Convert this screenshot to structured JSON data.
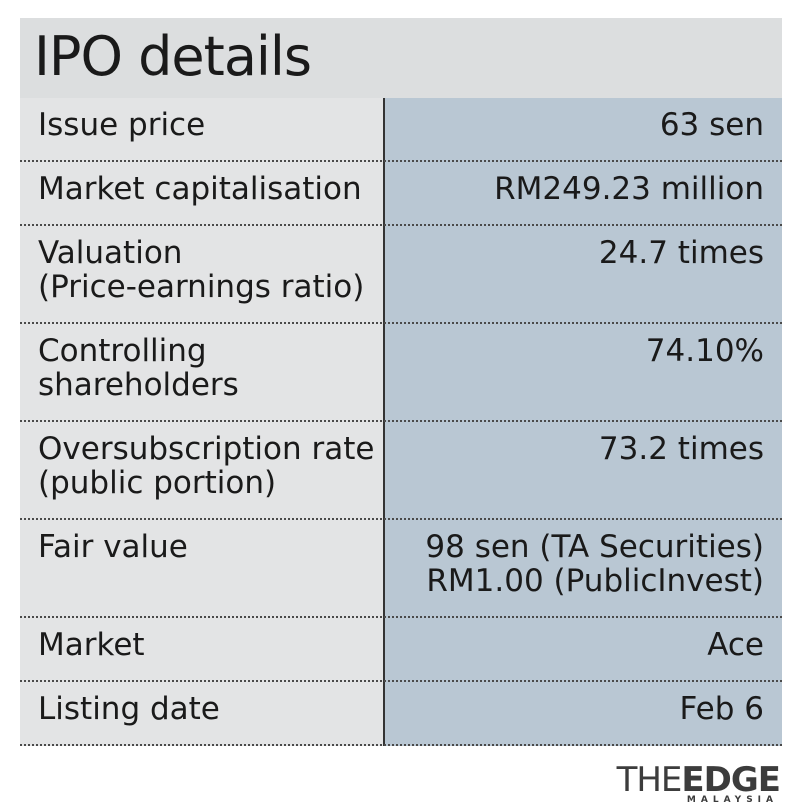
{
  "title": "IPO details",
  "rows": [
    {
      "label": [
        "Issue price"
      ],
      "value": [
        "63 sen"
      ]
    },
    {
      "label": [
        "Market capitalisation"
      ],
      "value": [
        "RM249.23 million"
      ]
    },
    {
      "label": [
        "Valuation",
        "(Price-earnings ratio)"
      ],
      "value": [
        "24.7 times"
      ]
    },
    {
      "label": [
        "Controlling",
        "shareholders"
      ],
      "value": [
        "74.10%"
      ]
    },
    {
      "label": [
        "Oversubscription rate",
        "(public portion)"
      ],
      "value": [
        "73.2 times"
      ]
    },
    {
      "label": [
        "Fair value"
      ],
      "value": [
        "98 sen (TA Securities)",
        "RM1.00 (PublicInvest)"
      ]
    },
    {
      "label": [
        "Market"
      ],
      "value": [
        "Ace"
      ]
    },
    {
      "label": [
        "Listing date"
      ],
      "value": [
        "Feb 6"
      ]
    }
  ],
  "logo": {
    "the": "THE",
    "edge": "EDGE",
    "sub": "MALAYSIA"
  },
  "colors": {
    "title_bg": "#dcdedf",
    "label_bg": "#e3e4e5",
    "value_bg": "#b9c7d3"
  }
}
